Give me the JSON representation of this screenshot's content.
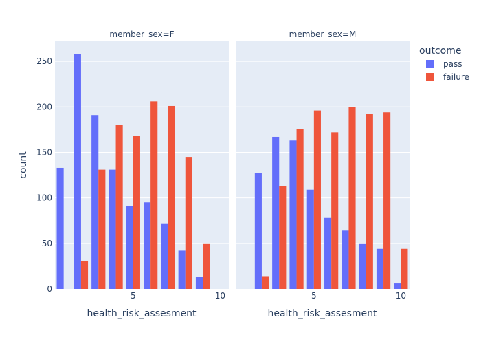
{
  "chart_data": {
    "type": "bar",
    "barmode": "group",
    "facets": [
      {
        "title": "member_sex=F",
        "x": [
          1,
          2,
          3,
          4,
          5,
          6,
          7,
          8,
          9,
          10
        ],
        "series": [
          {
            "name": "pass",
            "color": "#636efa",
            "values": [
              133,
              258,
              191,
              131,
              91,
              95,
              72,
              42,
              13,
              0
            ]
          },
          {
            "name": "failure",
            "color": "#ef553b",
            "values": [
              0,
              31,
              131,
              180,
              168,
              206,
              201,
              145,
              50,
              0
            ]
          }
        ]
      },
      {
        "title": "member_sex=M",
        "x": [
          1,
          2,
          3,
          4,
          5,
          6,
          7,
          8,
          9,
          10
        ],
        "series": [
          {
            "name": "pass",
            "color": "#636efa",
            "values": [
              0,
              127,
              167,
              163,
              109,
              78,
              64,
              50,
              44,
              6
            ]
          },
          {
            "name": "failure",
            "color": "#ef553b",
            "values": [
              0,
              14,
              113,
              176,
              196,
              172,
              200,
              192,
              194,
              44
            ]
          }
        ]
      }
    ],
    "xlabel": "health_risk_assesment",
    "ylabel": "count",
    "x_ticks": [
      5,
      10
    ],
    "y_ticks": [
      0,
      50,
      100,
      150,
      200,
      250
    ],
    "ylim": [
      0,
      272
    ],
    "legend": {
      "title": "outcome",
      "placement": "top-right"
    },
    "grid": true,
    "plot_bgcolor": "#e5ecf6"
  }
}
